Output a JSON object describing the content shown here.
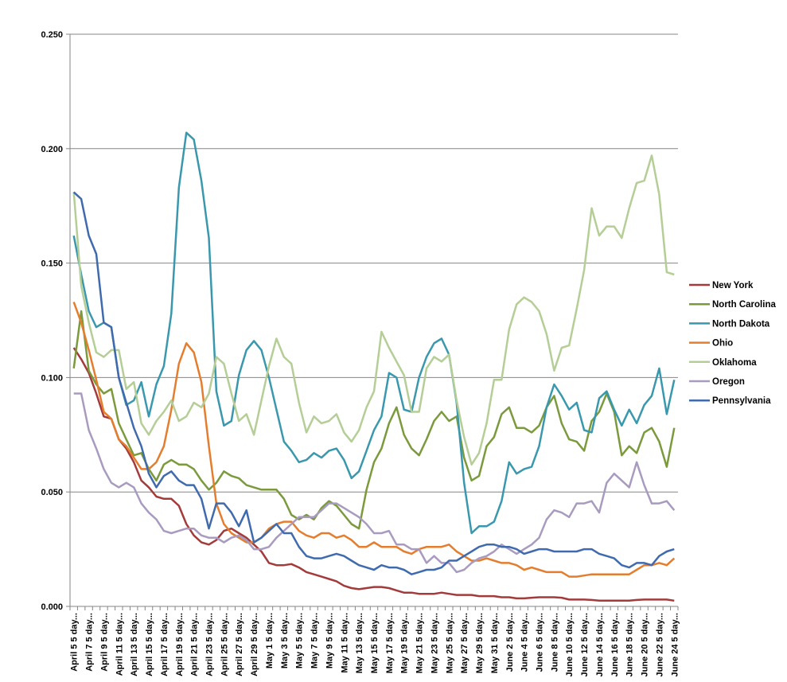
{
  "chart_data": {
    "type": "line",
    "title": "",
    "xlabel": "",
    "ylabel": "",
    "ylim": [
      0,
      0.25
    ],
    "y_ticks": [
      "0.000",
      "0.050",
      "0.100",
      "0.150",
      "0.200",
      "0.250"
    ],
    "grid": "horizontal",
    "legend_position": "right",
    "x_tick_labels": [
      "April 5 5 day...",
      "April 7 5 day...",
      "April 9 5 day...",
      "April 11 5 day...",
      "April 13 5 day...",
      "April 15 5 day...",
      "April 17 5 day...",
      "April 19 5 day...",
      "April 21 5 day...",
      "April 23 5 day...",
      "April 25 5 day...",
      "April 27 5 day...",
      "April 29 5 day...",
      "May 1 5 day...",
      "May 3 5 day...",
      "May 5 5 day...",
      "May 7 5 day...",
      "May 9 5 day...",
      "May 11 5 day...",
      "May 13 5 day...",
      "May 15 5 day...",
      "May 17 5 day...",
      "May 19 5 day...",
      "May 21 5 day...",
      "May 23 5 day...",
      "May 25 5 day...",
      "May 27 5 day...",
      "May 29 5 day...",
      "May 31 5 day...",
      "June 2 5 day...",
      "June 4 5 day...",
      "June 6 5 day...",
      "June 8 5 day...",
      "June 10 5 day...",
      "June 12 5 day...",
      "June 14 5 day...",
      "June 16 5 day...",
      "June 18 5 day...",
      "June 20 5 day...",
      "June 22 5 day...",
      "June 24 5 day..."
    ],
    "x_range": [
      "April 5",
      "June 24"
    ],
    "series": [
      {
        "name": "New York",
        "color": "#A33B3B",
        "values": [
          0.113,
          0.108,
          0.102,
          0.093,
          0.083,
          0.082,
          0.073,
          0.069,
          0.063,
          0.055,
          0.052,
          0.048,
          0.047,
          0.047,
          0.044,
          0.036,
          0.031,
          0.028,
          0.027,
          0.029,
          0.033,
          0.034,
          0.032,
          0.03,
          0.027,
          0.024,
          0.019,
          0.018,
          0.018,
          0.0185,
          0.017,
          0.015,
          0.014,
          0.013,
          0.012,
          0.011,
          0.009,
          0.008,
          0.0075,
          0.008,
          0.0085,
          0.0085,
          0.008,
          0.007,
          0.006,
          0.006,
          0.0055,
          0.0055,
          0.0055,
          0.006,
          0.0055,
          0.005,
          0.005,
          0.005,
          0.0045,
          0.0045,
          0.0045,
          0.004,
          0.004,
          0.0035,
          0.0035,
          0.0038,
          0.004,
          0.004,
          0.004,
          0.0038,
          0.003,
          0.003,
          0.003,
          0.0028,
          0.0025,
          0.0025,
          0.0025,
          0.0025,
          0.0025,
          0.0028,
          0.003,
          0.003,
          0.003,
          0.003,
          0.0025
        ]
      },
      {
        "name": "North Carolina",
        "color": "#7A9A3C",
        "values": [
          0.104,
          0.129,
          0.103,
          0.097,
          0.093,
          0.095,
          0.08,
          0.073,
          0.066,
          0.067,
          0.06,
          0.055,
          0.062,
          0.064,
          0.062,
          0.062,
          0.06,
          0.055,
          0.051,
          0.054,
          0.059,
          0.057,
          0.056,
          0.053,
          0.052,
          0.051,
          0.051,
          0.051,
          0.047,
          0.04,
          0.038,
          0.04,
          0.038,
          0.043,
          0.046,
          0.044,
          0.04,
          0.036,
          0.034,
          0.051,
          0.063,
          0.069,
          0.08,
          0.087,
          0.075,
          0.069,
          0.066,
          0.073,
          0.081,
          0.085,
          0.081,
          0.083,
          0.065,
          0.055,
          0.057,
          0.07,
          0.074,
          0.084,
          0.087,
          0.078,
          0.078,
          0.076,
          0.079,
          0.087,
          0.092,
          0.08,
          0.073,
          0.072,
          0.068,
          0.081,
          0.085,
          0.093,
          0.085,
          0.066,
          0.07,
          0.067,
          0.076,
          0.078,
          0.072,
          0.061,
          0.078
        ]
      },
      {
        "name": "North Dakota",
        "color": "#3A98AE",
        "values": [
          0.162,
          0.145,
          0.129,
          0.122,
          0.124,
          0.122,
          0.1,
          0.088,
          0.09,
          0.098,
          0.083,
          0.097,
          0.105,
          0.128,
          0.183,
          0.207,
          0.204,
          0.186,
          0.161,
          0.094,
          0.079,
          0.081,
          0.101,
          0.112,
          0.116,
          0.112,
          0.1,
          0.086,
          0.072,
          0.068,
          0.063,
          0.064,
          0.067,
          0.065,
          0.068,
          0.069,
          0.064,
          0.056,
          0.059,
          0.068,
          0.077,
          0.083,
          0.102,
          0.1,
          0.086,
          0.085,
          0.1,
          0.109,
          0.115,
          0.117,
          0.11,
          0.089,
          0.054,
          0.032,
          0.035,
          0.035,
          0.037,
          0.046,
          0.063,
          0.058,
          0.06,
          0.061,
          0.07,
          0.087,
          0.097,
          0.092,
          0.086,
          0.089,
          0.077,
          0.076,
          0.091,
          0.094,
          0.086,
          0.079,
          0.086,
          0.08,
          0.088,
          0.092,
          0.104,
          0.084,
          0.099
        ]
      },
      {
        "name": "Ohio",
        "color": "#E47E2E",
        "values": [
          0.133,
          0.124,
          0.112,
          0.099,
          0.085,
          0.082,
          0.073,
          0.07,
          0.065,
          0.06,
          0.06,
          0.063,
          0.07,
          0.086,
          0.106,
          0.115,
          0.111,
          0.098,
          0.07,
          0.045,
          0.036,
          0.032,
          0.03,
          0.028,
          0.028,
          0.03,
          0.034,
          0.036,
          0.037,
          0.037,
          0.033,
          0.031,
          0.03,
          0.032,
          0.032,
          0.03,
          0.031,
          0.029,
          0.026,
          0.026,
          0.028,
          0.026,
          0.026,
          0.026,
          0.024,
          0.023,
          0.025,
          0.026,
          0.026,
          0.026,
          0.027,
          0.024,
          0.022,
          0.02,
          0.02,
          0.021,
          0.02,
          0.019,
          0.019,
          0.018,
          0.016,
          0.017,
          0.016,
          0.015,
          0.015,
          0.015,
          0.013,
          0.013,
          0.0135,
          0.014,
          0.014,
          0.014,
          0.014,
          0.014,
          0.014,
          0.016,
          0.018,
          0.018,
          0.019,
          0.018,
          0.021
        ]
      },
      {
        "name": "Oklahoma",
        "color": "#B4CE96",
        "values": [
          0.181,
          0.14,
          0.124,
          0.111,
          0.109,
          0.112,
          0.112,
          0.095,
          0.098,
          0.08,
          0.075,
          0.081,
          0.085,
          0.09,
          0.081,
          0.083,
          0.089,
          0.087,
          0.093,
          0.109,
          0.106,
          0.093,
          0.081,
          0.084,
          0.075,
          0.09,
          0.105,
          0.117,
          0.109,
          0.106,
          0.089,
          0.076,
          0.083,
          0.08,
          0.081,
          0.084,
          0.076,
          0.072,
          0.077,
          0.087,
          0.094,
          0.12,
          0.113,
          0.107,
          0.101,
          0.085,
          0.085,
          0.104,
          0.109,
          0.107,
          0.11,
          0.09,
          0.074,
          0.062,
          0.067,
          0.08,
          0.099,
          0.099,
          0.121,
          0.132,
          0.135,
          0.133,
          0.129,
          0.119,
          0.103,
          0.113,
          0.114,
          0.13,
          0.147,
          0.174,
          0.162,
          0.166,
          0.166,
          0.161,
          0.174,
          0.185,
          0.186,
          0.197,
          0.18,
          0.146,
          0.145
        ]
      },
      {
        "name": "Oregon",
        "color": "#A99BC0",
        "values": [
          0.093,
          0.093,
          0.077,
          0.069,
          0.06,
          0.054,
          0.052,
          0.054,
          0.052,
          0.045,
          0.041,
          0.038,
          0.033,
          0.032,
          0.033,
          0.034,
          0.034,
          0.031,
          0.03,
          0.03,
          0.028,
          0.03,
          0.031,
          0.029,
          0.025,
          0.025,
          0.026,
          0.03,
          0.033,
          0.036,
          0.039,
          0.039,
          0.039,
          0.042,
          0.045,
          0.045,
          0.043,
          0.041,
          0.039,
          0.036,
          0.032,
          0.032,
          0.033,
          0.027,
          0.027,
          0.025,
          0.025,
          0.019,
          0.022,
          0.019,
          0.019,
          0.015,
          0.016,
          0.019,
          0.021,
          0.022,
          0.024,
          0.027,
          0.025,
          0.023,
          0.025,
          0.027,
          0.03,
          0.038,
          0.042,
          0.041,
          0.039,
          0.045,
          0.045,
          0.046,
          0.041,
          0.054,
          0.058,
          0.055,
          0.052,
          0.063,
          0.053,
          0.045,
          0.045,
          0.046,
          0.042
        ]
      },
      {
        "name": "Pennsylvania",
        "color": "#3F6BAE",
        "values": [
          0.181,
          0.178,
          0.162,
          0.154,
          0.124,
          0.122,
          0.1,
          0.089,
          0.078,
          0.07,
          0.058,
          0.052,
          0.057,
          0.059,
          0.055,
          0.053,
          0.053,
          0.047,
          0.034,
          0.045,
          0.045,
          0.041,
          0.035,
          0.042,
          0.028,
          0.03,
          0.033,
          0.036,
          0.032,
          0.032,
          0.026,
          0.022,
          0.021,
          0.021,
          0.022,
          0.023,
          0.022,
          0.02,
          0.018,
          0.017,
          0.016,
          0.018,
          0.017,
          0.017,
          0.016,
          0.014,
          0.015,
          0.016,
          0.016,
          0.017,
          0.02,
          0.02,
          0.022,
          0.024,
          0.026,
          0.027,
          0.027,
          0.026,
          0.026,
          0.025,
          0.023,
          0.024,
          0.025,
          0.025,
          0.024,
          0.024,
          0.024,
          0.024,
          0.025,
          0.025,
          0.023,
          0.022,
          0.021,
          0.018,
          0.017,
          0.019,
          0.019,
          0.018,
          0.022,
          0.024,
          0.025
        ]
      }
    ]
  }
}
